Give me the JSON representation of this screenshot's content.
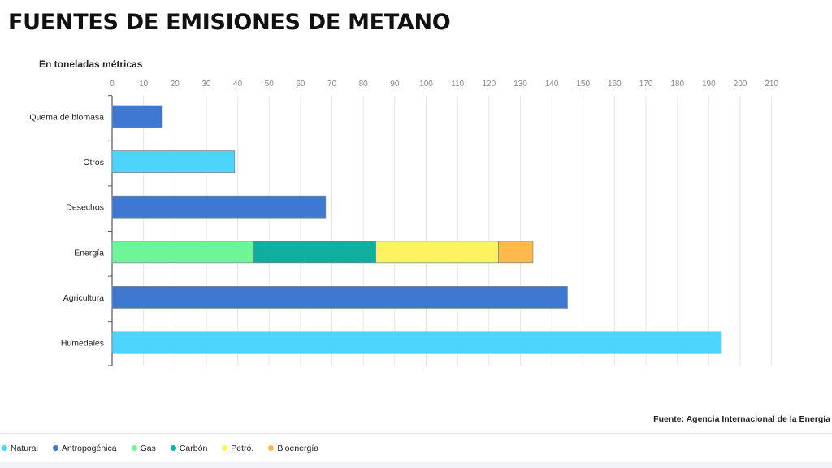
{
  "chart_data": {
    "type": "bar",
    "orientation": "horizontal",
    "stacked": true,
    "title": "FUENTES DE EMISIONES DE METANO",
    "subtitle": "En toneladas métricas",
    "source": "Fuente: Agencia Internacional de la Energía",
    "xlim": [
      0,
      210
    ],
    "x_ticks": [
      0,
      10,
      20,
      30,
      40,
      50,
      60,
      70,
      80,
      90,
      100,
      110,
      120,
      130,
      140,
      150,
      160,
      170,
      180,
      190,
      200,
      210
    ],
    "grid": true,
    "legend_position": "bottom-left",
    "categories": [
      "Quema de biomasa",
      "Otros",
      "Desechos",
      "Energía",
      "Agricultura",
      "Humedales"
    ],
    "series": [
      {
        "name": "Natural",
        "color": "#4dd4fc",
        "values": [
          0,
          39,
          0,
          0,
          0,
          194
        ]
      },
      {
        "name": "Antropogénica",
        "color": "#3f78d3",
        "values": [
          16,
          0,
          68,
          0,
          145,
          0
        ]
      },
      {
        "name": "Gas",
        "color": "#6ef596",
        "values": [
          0,
          0,
          0,
          45,
          0,
          0
        ]
      },
      {
        "name": "Carbón",
        "color": "#0fae9f",
        "values": [
          0,
          0,
          0,
          39,
          0,
          0
        ]
      },
      {
        "name": "Petró.",
        "color": "#fff261",
        "values": [
          0,
          0,
          0,
          39,
          0,
          0
        ]
      },
      {
        "name": "Bioenergía",
        "color": "#ffb84a",
        "values": [
          0,
          0,
          0,
          11,
          0,
          0
        ]
      }
    ]
  }
}
